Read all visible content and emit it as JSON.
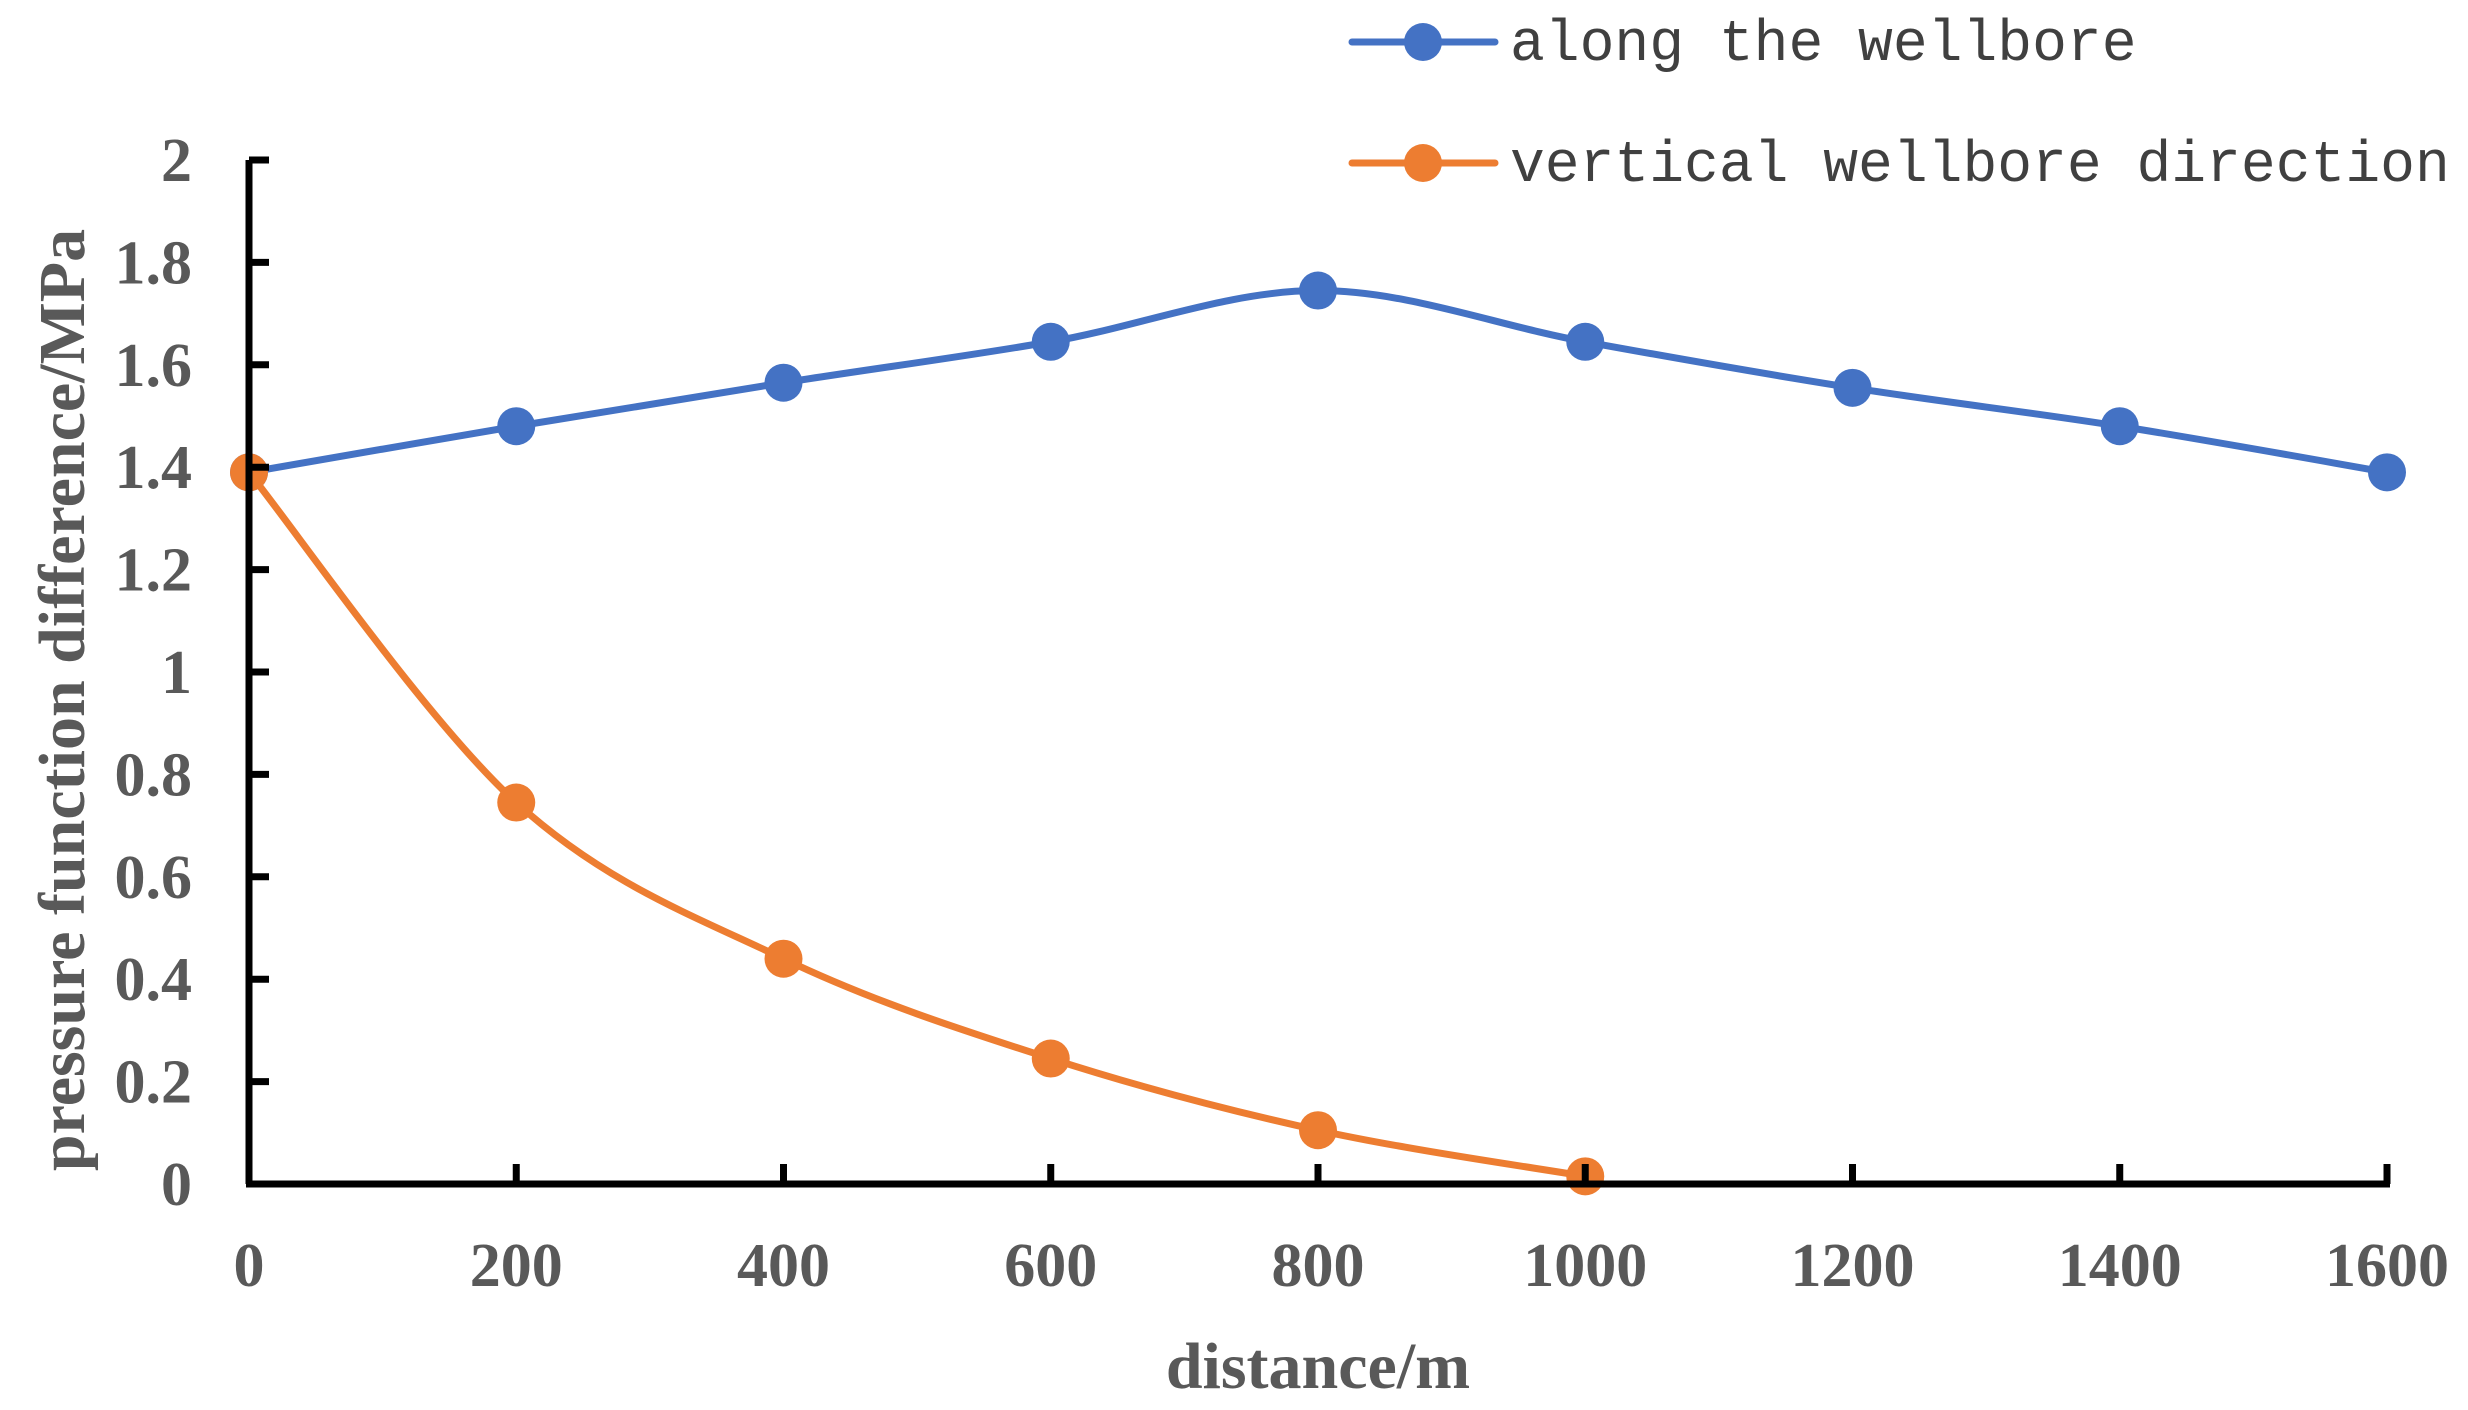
{
  "chart_data": {
    "type": "line",
    "title": "",
    "xlabel": "distance/m",
    "ylabel": "pressure function difference/MPa",
    "xlim": [
      0,
      1600
    ],
    "ylim": [
      0,
      2
    ],
    "x_ticks": [
      0,
      200,
      400,
      600,
      800,
      1000,
      1200,
      1400,
      1600
    ],
    "y_ticks": [
      0,
      0.2,
      0.4,
      0.6,
      0.8,
      1,
      1.2,
      1.4,
      1.6,
      1.8,
      2
    ],
    "x_tick_labels": [
      "0",
      "200",
      "400",
      "600",
      "800",
      "1000",
      "1200",
      "1400",
      "1600"
    ],
    "y_tick_labels": [
      "0",
      "0.2",
      "0.4",
      "0.6",
      "0.8",
      "1",
      "1.2",
      "1.4",
      "1.6",
      "1.8",
      "2"
    ],
    "grid": false,
    "legend_position": "top-right",
    "smooth": true,
    "series": [
      {
        "name": "along the wellbore",
        "color": "#4472C4",
        "x": [
          0,
          200,
          400,
          600,
          800,
          1000,
          1200,
          1400,
          1600
        ],
        "y": [
          1.39,
          1.48,
          1.565,
          1.645,
          1.745,
          1.645,
          1.555,
          1.48,
          1.39
        ]
      },
      {
        "name": "vertical wellbore direction",
        "color": "#ED7D31",
        "x": [
          0,
          200,
          400,
          600,
          800,
          1000
        ],
        "y": [
          1.39,
          0.745,
          0.44,
          0.245,
          0.105,
          0.015
        ]
      }
    ]
  }
}
